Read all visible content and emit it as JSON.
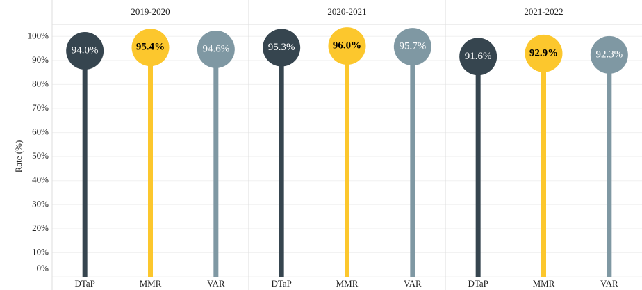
{
  "chart_data": {
    "type": "lollipop",
    "y_label": "Rate (%)",
    "categories": [
      "DTaP",
      "MMR",
      "VAR"
    ],
    "colors": [
      "#36454f",
      "#fcc72d",
      "#7f98a3"
    ],
    "label_colors": [
      "#ffffff",
      "#000000",
      "#ffffff"
    ],
    "panels": [
      {
        "title": "2019-2020",
        "values": [
          94.0,
          95.4,
          94.6
        ],
        "value_labels": [
          "94.0%",
          "95.4%",
          "94.6%"
        ]
      },
      {
        "title": "2020-2021",
        "values": [
          95.3,
          96.0,
          95.7
        ],
        "value_labels": [
          "95.3%",
          "96.0%",
          "95.7%"
        ]
      },
      {
        "title": "2021-2022",
        "values": [
          91.6,
          92.9,
          92.3
        ],
        "value_labels": [
          "91.6%",
          "92.9%",
          "92.3%"
        ]
      }
    ],
    "ylim": [
      0,
      105
    ],
    "yticks": [
      {
        "value": 0,
        "label": "0%"
      },
      {
        "value": 10,
        "label": "10%"
      },
      {
        "value": 20,
        "label": "20%"
      },
      {
        "value": 30,
        "label": "30%"
      },
      {
        "value": 40,
        "label": "40%"
      },
      {
        "value": 50,
        "label": "50%"
      },
      {
        "value": 60,
        "label": "60%"
      },
      {
        "value": 70,
        "label": "70%"
      },
      {
        "value": 80,
        "label": "80%"
      },
      {
        "value": 90,
        "label": "90%"
      },
      {
        "value": 100,
        "label": "100%"
      }
    ],
    "grid": true
  }
}
